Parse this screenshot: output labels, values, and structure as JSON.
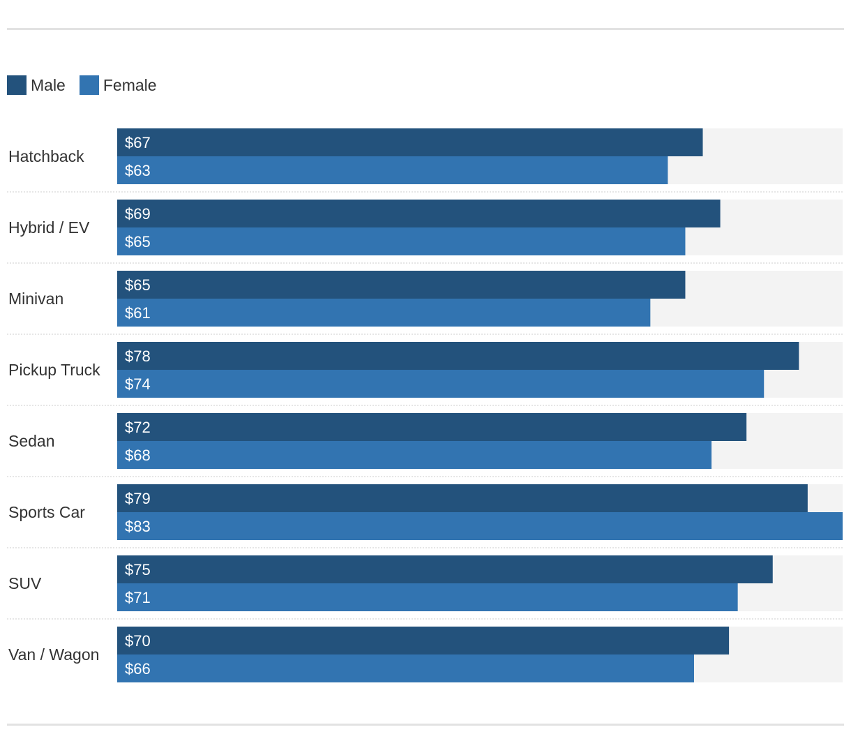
{
  "legend": {
    "items": [
      {
        "label": "Male",
        "color": "#23527c"
      },
      {
        "label": "Female",
        "color": "#3274b1"
      }
    ]
  },
  "chart_data": {
    "type": "bar",
    "orientation": "horizontal",
    "categories": [
      "Hatchback",
      "Hybrid / EV",
      "Minivan",
      "Pickup Truck",
      "Sedan",
      "Sports Car",
      "SUV",
      "Van / Wagon"
    ],
    "series": [
      {
        "name": "Male",
        "color": "#23527c",
        "values": [
          67,
          69,
          65,
          78,
          72,
          79,
          75,
          70
        ],
        "labels": [
          "$67",
          "$69",
          "$65",
          "$78",
          "$72",
          "$79",
          "$75",
          "$70"
        ]
      },
      {
        "name": "Female",
        "color": "#3274b1",
        "values": [
          63,
          65,
          61,
          74,
          68,
          83,
          71,
          66
        ],
        "labels": [
          "$63",
          "$65",
          "$61",
          "$74",
          "$68",
          "$83",
          "$71",
          "$66"
        ]
      }
    ],
    "xlim": [
      0,
      83
    ],
    "track_color": "#f3f3f3",
    "legend_position": "top-left",
    "grid": false
  }
}
